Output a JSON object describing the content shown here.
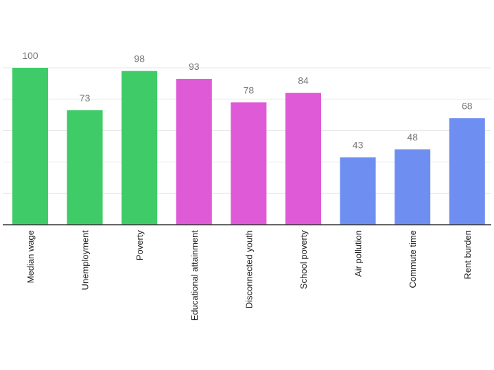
{
  "chart_data": {
    "type": "bar",
    "title": "",
    "xlabel": "",
    "ylabel": "",
    "ylim": [
      0,
      100
    ],
    "grid": true,
    "categories": [
      "Median wage",
      "Unemployment",
      "Poverty",
      "Educational attainment",
      "Disconnected youth",
      "School poverty",
      "Air pollution",
      "Commute time",
      "Rent burden"
    ],
    "values": [
      100,
      73,
      98,
      93,
      78,
      84,
      43,
      48,
      68
    ],
    "bar_colors": [
      "#3fcc68",
      "#3fcc68",
      "#3fcc68",
      "#df5ad6",
      "#df5ad6",
      "#df5ad6",
      "#6f8ef2",
      "#6f8ef2",
      "#6f8ef2"
    ],
    "value_labels": [
      "100",
      "73",
      "98",
      "93",
      "78",
      "84",
      "43",
      "48",
      "68"
    ]
  }
}
